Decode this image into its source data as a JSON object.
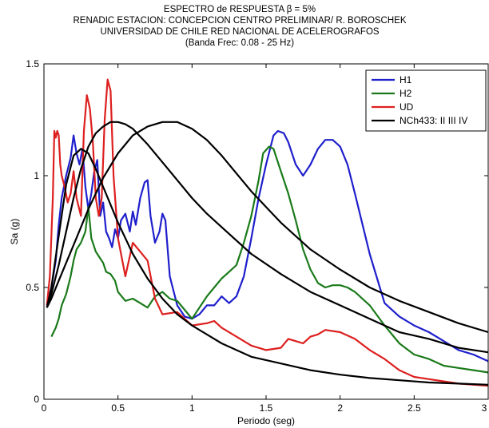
{
  "chart_data": {
    "type": "line",
    "title_lines": [
      "ESPECTRO de RESPUESTA β = 5%",
      "RENADIC ESTACION: CONCEPCION CENTRO PRELIMINAR/ R. BOROSCHEK",
      "UNIVERSIDAD DE CHILE RED NACIONAL DE ACELEROGRAFOS",
      "(Banda Frec: 0.08 - 25 Hz)"
    ],
    "xlabel": "Periodo (seg)",
    "ylabel": "Sa (g)",
    "xlim": [
      0,
      3
    ],
    "ylim": [
      0,
      1.5
    ],
    "xticks": [
      "0",
      "0.5",
      "1",
      "1.5",
      "2",
      "2.5",
      "3"
    ],
    "yticks": [
      "0",
      "0.5",
      "1",
      "1.5"
    ],
    "grid": false,
    "legend_position": "top-right",
    "series": [
      {
        "name": "H1",
        "color": "#1f1fcc",
        "x": [
          0.02,
          0.05,
          0.08,
          0.1,
          0.12,
          0.15,
          0.18,
          0.2,
          0.22,
          0.24,
          0.26,
          0.28,
          0.3,
          0.32,
          0.34,
          0.36,
          0.38,
          0.4,
          0.42,
          0.44,
          0.46,
          0.48,
          0.5,
          0.52,
          0.55,
          0.58,
          0.6,
          0.62,
          0.65,
          0.68,
          0.7,
          0.72,
          0.75,
          0.78,
          0.8,
          0.82,
          0.85,
          0.9,
          0.95,
          1.0,
          1.05,
          1.1,
          1.15,
          1.2,
          1.25,
          1.3,
          1.35,
          1.4,
          1.45,
          1.5,
          1.55,
          1.58,
          1.62,
          1.65,
          1.7,
          1.75,
          1.8,
          1.85,
          1.9,
          1.95,
          2.0,
          2.05,
          2.1,
          2.2,
          2.3,
          2.4,
          2.5,
          2.6,
          2.7,
          2.8,
          2.9,
          3.0
        ],
        "y": [
          0.42,
          0.5,
          0.62,
          0.78,
          0.9,
          1.0,
          1.08,
          1.18,
          1.1,
          1.05,
          1.12,
          0.95,
          0.85,
          0.92,
          1.02,
          1.07,
          0.82,
          0.88,
          0.75,
          0.72,
          0.68,
          0.76,
          0.72,
          0.8,
          0.83,
          0.75,
          0.84,
          0.78,
          0.9,
          0.97,
          0.98,
          0.82,
          0.7,
          0.75,
          0.83,
          0.8,
          0.55,
          0.42,
          0.37,
          0.36,
          0.38,
          0.42,
          0.42,
          0.46,
          0.43,
          0.46,
          0.55,
          0.72,
          0.9,
          1.05,
          1.18,
          1.2,
          1.19,
          1.15,
          1.05,
          1.0,
          1.05,
          1.12,
          1.16,
          1.16,
          1.13,
          1.05,
          0.92,
          0.65,
          0.43,
          0.37,
          0.33,
          0.3,
          0.26,
          0.22,
          0.2,
          0.17
        ]
      },
      {
        "name": "H2",
        "color": "#1a7a1a",
        "x": [
          0.05,
          0.08,
          0.1,
          0.12,
          0.15,
          0.18,
          0.2,
          0.22,
          0.25,
          0.28,
          0.3,
          0.32,
          0.35,
          0.38,
          0.4,
          0.42,
          0.45,
          0.48,
          0.5,
          0.55,
          0.6,
          0.65,
          0.7,
          0.75,
          0.8,
          0.85,
          0.9,
          0.95,
          1.0,
          1.05,
          1.1,
          1.15,
          1.2,
          1.25,
          1.3,
          1.35,
          1.4,
          1.45,
          1.48,
          1.52,
          1.55,
          1.6,
          1.65,
          1.7,
          1.75,
          1.8,
          1.85,
          1.9,
          1.95,
          2.0,
          2.05,
          2.1,
          2.2,
          2.3,
          2.4,
          2.5,
          2.6,
          2.7,
          2.8,
          2.9,
          3.0
        ],
        "y": [
          0.28,
          0.32,
          0.36,
          0.42,
          0.47,
          0.55,
          0.62,
          0.67,
          0.7,
          0.75,
          0.86,
          0.72,
          0.66,
          0.63,
          0.61,
          0.57,
          0.56,
          0.53,
          0.48,
          0.44,
          0.45,
          0.43,
          0.41,
          0.46,
          0.48,
          0.45,
          0.44,
          0.4,
          0.36,
          0.41,
          0.46,
          0.5,
          0.54,
          0.57,
          0.6,
          0.7,
          0.82,
          0.98,
          1.1,
          1.13,
          1.12,
          1.02,
          0.92,
          0.8,
          0.67,
          0.58,
          0.52,
          0.5,
          0.51,
          0.51,
          0.5,
          0.48,
          0.42,
          0.33,
          0.25,
          0.2,
          0.18,
          0.15,
          0.14,
          0.13,
          0.12
        ]
      },
      {
        "name": "UD",
        "color": "#dd1f1f",
        "x": [
          0.02,
          0.04,
          0.06,
          0.07,
          0.08,
          0.09,
          0.1,
          0.11,
          0.12,
          0.14,
          0.16,
          0.18,
          0.2,
          0.22,
          0.25,
          0.27,
          0.29,
          0.31,
          0.33,
          0.35,
          0.37,
          0.39,
          0.41,
          0.43,
          0.45,
          0.47,
          0.5,
          0.55,
          0.6,
          0.65,
          0.7,
          0.75,
          0.8,
          0.9,
          1.0,
          1.1,
          1.15,
          1.2,
          1.3,
          1.4,
          1.5,
          1.6,
          1.65,
          1.7,
          1.75,
          1.8,
          1.85,
          1.9,
          2.0,
          2.1,
          2.2,
          2.3,
          2.4,
          2.5,
          2.6,
          2.7,
          2.8,
          2.9,
          3.0
        ],
        "y": [
          0.42,
          0.55,
          0.9,
          1.2,
          1.17,
          1.2,
          1.18,
          1.05,
          1.0,
          0.95,
          0.88,
          0.92,
          1.02,
          0.9,
          0.82,
          1.2,
          1.36,
          1.3,
          1.15,
          0.9,
          0.82,
          0.9,
          1.25,
          1.43,
          1.38,
          1.0,
          0.72,
          0.55,
          0.7,
          0.66,
          0.62,
          0.45,
          0.38,
          0.39,
          0.33,
          0.34,
          0.35,
          0.32,
          0.28,
          0.24,
          0.22,
          0.23,
          0.27,
          0.26,
          0.25,
          0.28,
          0.29,
          0.31,
          0.3,
          0.27,
          0.22,
          0.18,
          0.13,
          0.1,
          0.09,
          0.08,
          0.07,
          0.065,
          0.06
        ]
      },
      {
        "name": "NCh433: II III IV",
        "color": "#000000",
        "x": [
          0.02,
          0.05,
          0.1,
          0.15,
          0.2,
          0.25,
          0.3,
          0.35,
          0.4,
          0.5,
          0.6,
          0.7,
          0.8,
          0.9,
          1.0,
          1.2,
          1.4,
          1.6,
          1.8,
          2.0,
          2.2,
          2.4,
          2.6,
          2.8,
          3.0
        ],
        "y": [
          0.41,
          0.5,
          0.73,
          0.96,
          1.09,
          1.12,
          1.1,
          1.03,
          0.95,
          0.79,
          0.65,
          0.54,
          0.45,
          0.38,
          0.33,
          0.25,
          0.19,
          0.16,
          0.13,
          0.11,
          0.095,
          0.085,
          0.075,
          0.07,
          0.065
        ]
      },
      {
        "name": "",
        "color": "#000000",
        "x": [
          0.02,
          0.05,
          0.1,
          0.15,
          0.2,
          0.25,
          0.3,
          0.35,
          0.4,
          0.45,
          0.5,
          0.55,
          0.6,
          0.7,
          0.8,
          0.9,
          1.0,
          1.1,
          1.2,
          1.4,
          1.6,
          1.8,
          2.0,
          2.2,
          2.4,
          2.6,
          2.8,
          3.0
        ],
        "y": [
          0.41,
          0.47,
          0.6,
          0.75,
          0.9,
          1.03,
          1.13,
          1.19,
          1.22,
          1.24,
          1.24,
          1.23,
          1.21,
          1.14,
          1.06,
          0.98,
          0.9,
          0.83,
          0.77,
          0.65,
          0.56,
          0.48,
          0.42,
          0.36,
          0.3,
          0.27,
          0.23,
          0.21
        ]
      },
      {
        "name": "",
        "color": "#000000",
        "x": [
          0.02,
          0.05,
          0.1,
          0.15,
          0.2,
          0.3,
          0.4,
          0.5,
          0.6,
          0.7,
          0.8,
          0.85,
          0.9,
          1.0,
          1.1,
          1.2,
          1.3,
          1.4,
          1.5,
          1.6,
          1.8,
          2.0,
          2.2,
          2.4,
          2.6,
          2.8,
          3.0
        ],
        "y": [
          0.41,
          0.45,
          0.53,
          0.61,
          0.69,
          0.85,
          0.99,
          1.1,
          1.18,
          1.22,
          1.24,
          1.24,
          1.24,
          1.21,
          1.16,
          1.09,
          1.01,
          0.93,
          0.86,
          0.79,
          0.67,
          0.58,
          0.5,
          0.44,
          0.39,
          0.34,
          0.3
        ]
      }
    ]
  }
}
